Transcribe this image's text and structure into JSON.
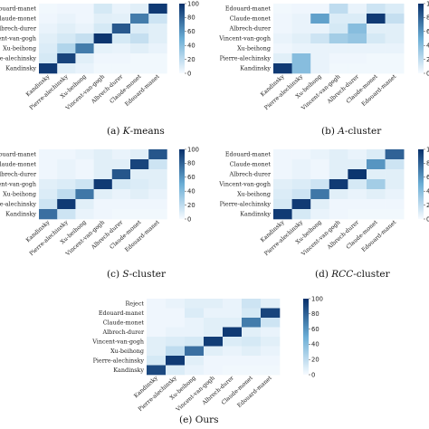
{
  "colorscale": {
    "low": "#f7fbff",
    "high": "#08306b"
  },
  "colorbar_ticks": [
    0,
    20,
    40,
    60,
    80,
    100
  ],
  "chart_data": [
    {
      "type": "heatmap",
      "caption": {
        "letter": "(a)",
        "method": "K",
        "suffix": "-means"
      },
      "row_labels": [
        "Edouard-manet",
        "Claude-monet",
        "Albrech-durer",
        "Vincent-van-gogh",
        "Xu-beihong",
        "Pierre-alechinsky",
        "Kandinsky"
      ],
      "col_labels": [
        "Kandinsky",
        "Pierre-alechinsky",
        "Xu-beihong",
        "Vincent-van-gogh",
        "Albrech-durer",
        "Claude-monet",
        "Edouard-manet"
      ],
      "values": [
        [
          2,
          3,
          3,
          12,
          5,
          8,
          96
        ],
        [
          3,
          5,
          3,
          8,
          7,
          70,
          15
        ],
        [
          5,
          8,
          5,
          12,
          84,
          10,
          8
        ],
        [
          8,
          12,
          18,
          98,
          12,
          18,
          8
        ],
        [
          10,
          25,
          70,
          6,
          5,
          8,
          5
        ],
        [
          12,
          92,
          8,
          3,
          3,
          2,
          2
        ],
        [
          96,
          8,
          5,
          2,
          2,
          2,
          2
        ]
      ],
      "clim": [
        0,
        100
      ]
    },
    {
      "type": "heatmap",
      "caption": {
        "letter": "(b)",
        "method": "A",
        "suffix": "-cluster"
      },
      "row_labels": [
        "Edouard-manet",
        "Claude-monet",
        "Albrech-durer",
        "Vincent-van-gogh",
        "Xu-beihong",
        "Pierre-alechinsky",
        "Kandinsky"
      ],
      "col_labels": [
        "Kandinsky",
        "Pierre-alechinsky",
        "Xu-beihong",
        "Vincent-van-gogh",
        "Albrech-durer",
        "Claude-monet",
        "Edouard-manet"
      ],
      "values": [
        [
          2,
          3,
          3,
          20,
          5,
          15,
          10
        ],
        [
          3,
          5,
          55,
          10,
          10,
          96,
          18
        ],
        [
          3,
          5,
          5,
          12,
          40,
          8,
          8
        ],
        [
          5,
          8,
          15,
          30,
          35,
          12,
          8
        ],
        [
          3,
          5,
          5,
          5,
          5,
          5,
          5
        ],
        [
          8,
          40,
          5,
          3,
          3,
          2,
          2
        ],
        [
          96,
          40,
          5,
          2,
          2,
          2,
          2
        ]
      ],
      "clim": [
        0,
        100
      ]
    },
    {
      "type": "heatmap",
      "caption": {
        "letter": "(c)",
        "method": "S",
        "suffix": "-cluster"
      },
      "row_labels": [
        "Edouard-manet",
        "Claude-monet",
        "Albrech-durer",
        "Vincent-van-gogh",
        "Xu-beihong",
        "Pierre-alechinsky",
        "Kandinsky"
      ],
      "col_labels": [
        "Kandinsky",
        "Pierre-alechinsky",
        "Xu-beihong",
        "Vincent-van-gogh",
        "Albrech-durer",
        "Claude-monet",
        "Edouard-manet"
      ],
      "values": [
        [
          3,
          3,
          5,
          8,
          5,
          8,
          85
        ],
        [
          3,
          5,
          3,
          8,
          8,
          92,
          15
        ],
        [
          3,
          5,
          3,
          8,
          85,
          8,
          8
        ],
        [
          8,
          10,
          15,
          96,
          12,
          10,
          8
        ],
        [
          10,
          20,
          72,
          8,
          5,
          8,
          5
        ],
        [
          15,
          96,
          8,
          3,
          3,
          3,
          3
        ],
        [
          75,
          15,
          5,
          3,
          2,
          2,
          2
        ]
      ],
      "clim": [
        0,
        100
      ]
    },
    {
      "type": "heatmap",
      "caption": {
        "letter": "(d)",
        "method": "RCC",
        "suffix": "-cluster"
      },
      "row_labels": [
        "Edouard-manet",
        "Claude-monet",
        "Albrech-durer",
        "Vincent-van-gogh",
        "Xu-beihong",
        "Pierre-alechinsky",
        "Kandinsky"
      ],
      "col_labels": [
        "Kandinsky",
        "Pierre-alechinsky",
        "Xu-beihong",
        "Vincent-van-gogh",
        "Albrech-durer",
        "Claude-monet",
        "Edouard-manet"
      ],
      "values": [
        [
          3,
          3,
          5,
          8,
          5,
          10,
          80
        ],
        [
          3,
          5,
          3,
          8,
          8,
          60,
          15
        ],
        [
          3,
          5,
          3,
          8,
          98,
          8,
          8
        ],
        [
          8,
          10,
          15,
          96,
          12,
          30,
          8
        ],
        [
          10,
          15,
          72,
          8,
          5,
          8,
          5
        ],
        [
          12,
          96,
          8,
          3,
          3,
          3,
          3
        ],
        [
          96,
          12,
          5,
          3,
          2,
          2,
          2
        ]
      ],
      "clim": [
        0,
        100
      ]
    },
    {
      "type": "heatmap",
      "caption": {
        "letter": "(e)",
        "method": "",
        "suffix": "Ours"
      },
      "row_labels": [
        "Reject",
        "Edouard-manet",
        "Claude-monet",
        "Albrech-durer",
        "Vincent-van-gogh",
        "Xu-beihong",
        "Pierre-alechinsky",
        "Kandinsky"
      ],
      "col_labels": [
        "Kandinsky",
        "Pierre-alechinsky",
        "Xu-beihong",
        "Vincent-van-gogh",
        "Albrech-durer",
        "Claude-monet",
        "Edouard-manet"
      ],
      "values": [
        [
          3,
          5,
          8,
          8,
          5,
          15,
          8
        ],
        [
          3,
          3,
          10,
          5,
          5,
          12,
          92
        ],
        [
          3,
          3,
          5,
          8,
          8,
          70,
          15
        ],
        [
          3,
          5,
          5,
          8,
          96,
          8,
          5
        ],
        [
          8,
          10,
          12,
          95,
          10,
          12,
          8
        ],
        [
          8,
          20,
          75,
          8,
          5,
          8,
          5
        ],
        [
          12,
          96,
          8,
          3,
          3,
          3,
          3
        ],
        [
          90,
          10,
          5,
          3,
          2,
          2,
          2
        ]
      ],
      "clim": [
        0,
        100
      ]
    }
  ]
}
